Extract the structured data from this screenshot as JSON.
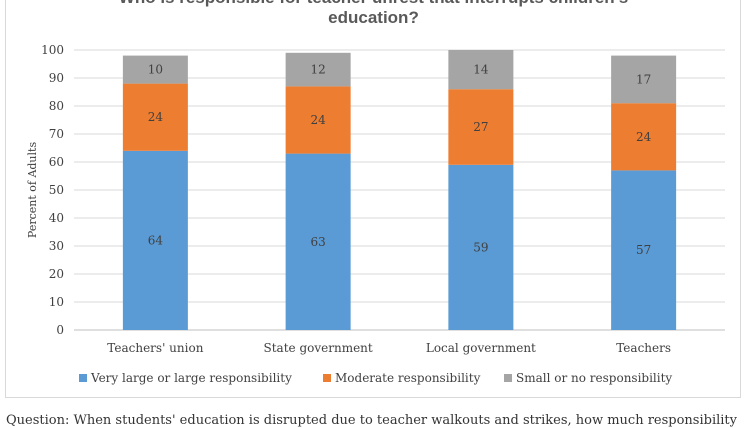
{
  "chart_data": {
    "type": "bar",
    "stacked": true,
    "title": "Who is responsible for teacher unrest that interrupts children's education?",
    "title_lines": [
      "Who is responsible for teacher unrest that interrupts children's",
      "education?"
    ],
    "ylabel": "Percent of Adults",
    "xlabel": "",
    "ylim": [
      0,
      100
    ],
    "yticks": [
      0,
      10,
      20,
      30,
      40,
      50,
      60,
      70,
      80,
      90,
      100
    ],
    "grid": true,
    "legend_position": "bottom",
    "categories": [
      "Teachers' union",
      "State government",
      "Local government",
      "Teachers"
    ],
    "series": [
      {
        "name": "Very large or large responsibility",
        "color": "#5b9bd5",
        "values": [
          64,
          63,
          59,
          57
        ]
      },
      {
        "name": "Moderate responsibility",
        "color": "#ed7d31",
        "values": [
          24,
          24,
          27,
          24
        ]
      },
      {
        "name": "Small or no responsibility",
        "color": "#a5a5a5",
        "values": [
          10,
          12,
          14,
          17
        ]
      }
    ]
  },
  "footnote": "Question: When students' education is disrupted due to teacher walkouts and strikes, how much responsibility"
}
